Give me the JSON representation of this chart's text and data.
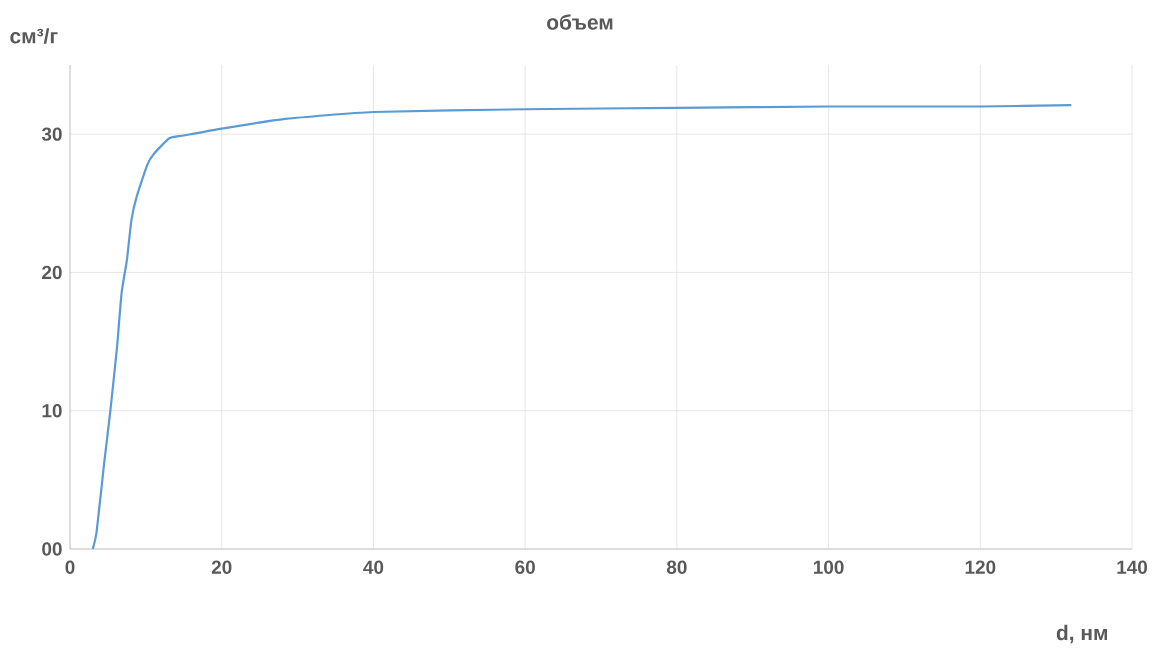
{
  "chart_data": {
    "type": "line",
    "title": "объем",
    "xlabel": "d, нм",
    "ylabel": "см³/г",
    "x": [
      3,
      3.5,
      4.5,
      5.3,
      6.2,
      6.8,
      7.5,
      8.1,
      8.8,
      10.2,
      11.1,
      13.1,
      15,
      20,
      28.4,
      40,
      60,
      80,
      100,
      120,
      132
    ],
    "series": [
      {
        "color": "#5b9bd5",
        "values": [
          0,
          1.2,
          6.2,
          9.9,
          14.6,
          18.5,
          20.9,
          23.8,
          25.5,
          27.8,
          28.6,
          29.7,
          29.9,
          30.4,
          31.1,
          31.6,
          31.8,
          31.9,
          32,
          32,
          32.1
        ]
      }
    ],
    "xlim": [
      0,
      140
    ],
    "xticks": [
      0,
      20,
      40,
      60,
      80,
      100,
      120,
      140
    ],
    "ylim": [
      0,
      35
    ],
    "yticks": [
      {
        "value": 0,
        "label": "00"
      },
      10,
      20,
      30
    ],
    "grid": true,
    "line_style": "solid",
    "marker": "none"
  }
}
